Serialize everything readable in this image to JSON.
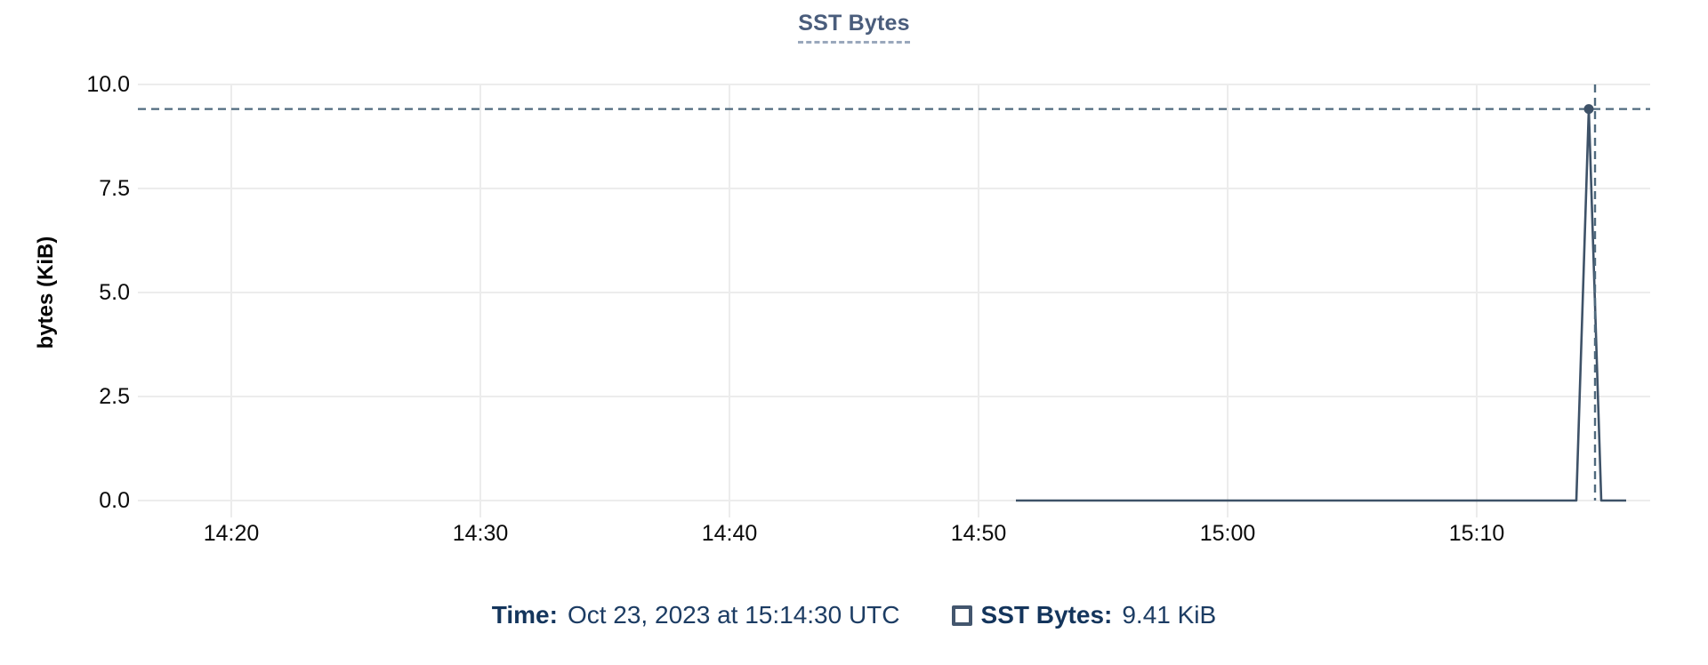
{
  "chart_data": {
    "type": "line",
    "title": "SST Bytes",
    "xlabel": "",
    "ylabel": "bytes (KiB)",
    "ylim": [
      0,
      10
    ],
    "grid": true,
    "legend_position": "bottom",
    "y_ticks": [
      {
        "value": 0,
        "label": "0.0"
      },
      {
        "value": 2.5,
        "label": "2.5"
      },
      {
        "value": 5,
        "label": "5.0"
      },
      {
        "value": 7.5,
        "label": "7.5"
      },
      {
        "value": 10,
        "label": "10.0"
      }
    ],
    "x_ticks": [
      {
        "time": "14:20",
        "label": "14:20"
      },
      {
        "time": "14:30",
        "label": "14:30"
      },
      {
        "time": "14:40",
        "label": "14:40"
      },
      {
        "time": "14:50",
        "label": "14:50"
      },
      {
        "time": "15:00",
        "label": "15:00"
      },
      {
        "time": "15:10",
        "label": "15:10"
      }
    ],
    "series": [
      {
        "name": "SST Bytes",
        "unit": "KiB",
        "points": [
          {
            "time": "14:51:30",
            "value": 0
          },
          {
            "time": "15:14:00",
            "value": 0
          },
          {
            "time": "15:14:30",
            "value": 9.41
          },
          {
            "time": "15:15:00",
            "value": 0
          },
          {
            "time": "15:16:00",
            "value": 0
          }
        ]
      }
    ],
    "selected_point": {
      "series": "SST Bytes",
      "time": "15:14:30",
      "value": 9.41,
      "value_label": "9.41 KiB"
    }
  },
  "tooltip": {
    "time_label": "Time:",
    "time_value": "Oct 23, 2023 at 15:14:30 UTC",
    "series_label": "SST Bytes:",
    "series_value": "9.41 KiB"
  },
  "colors": {
    "line": "#3e5268",
    "marker": "#3e5268",
    "crosshair": "#4f6a7e",
    "grid": "#ececec",
    "title": "#4a5d7c",
    "legend_text": "#16375e",
    "swatch_border": "#43566e"
  }
}
